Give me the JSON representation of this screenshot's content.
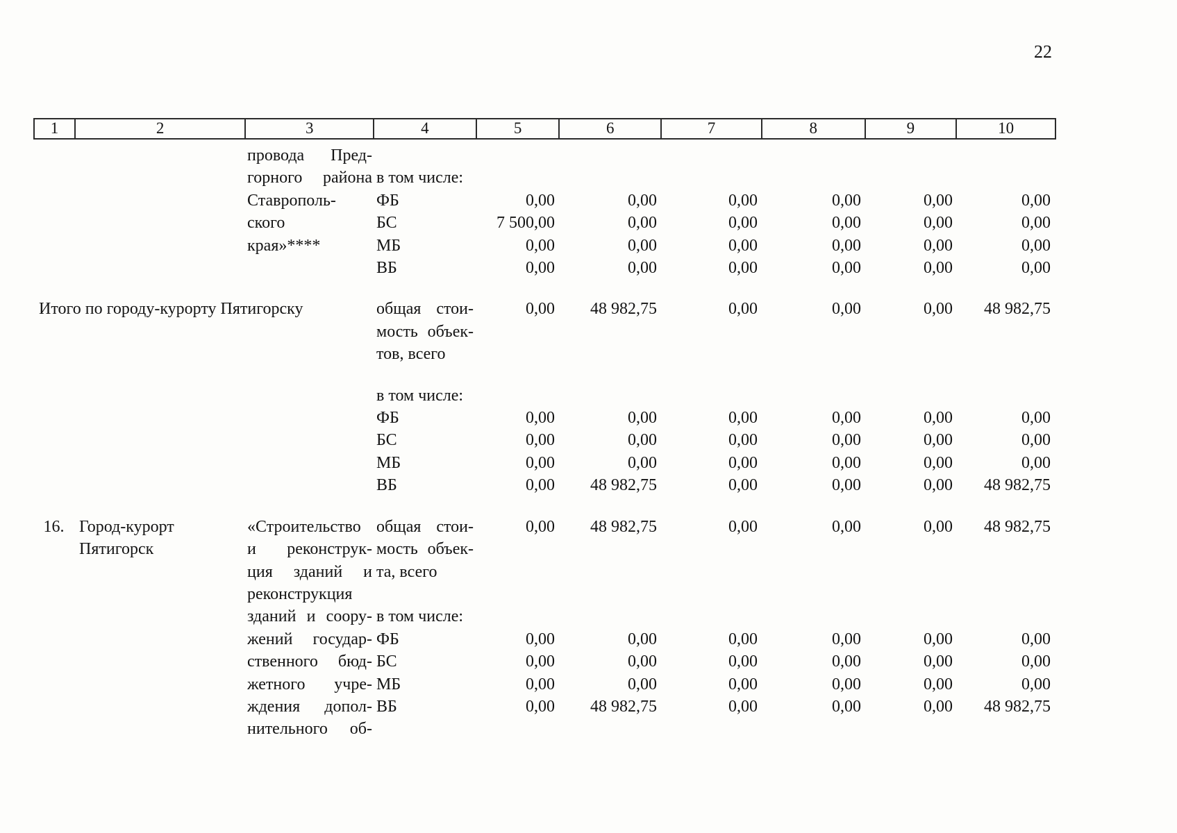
{
  "page_number": "22",
  "table": {
    "header": [
      "1",
      "2",
      "3",
      "4",
      "5",
      "6",
      "7",
      "8",
      "9",
      "10"
    ],
    "rows": [
      {
        "cells": [
          {
            "c": 3,
            "t": "провода Пред-",
            "j": 1
          }
        ]
      },
      {
        "cells": [
          {
            "c": 3,
            "t": "горного района",
            "j": 1
          },
          {
            "c": 4,
            "t": "в том числе:"
          }
        ]
      },
      {
        "cells": [
          {
            "c": 3,
            "t": "Ставрополь-",
            "j": 1
          },
          {
            "c": 4,
            "t": "ФБ"
          },
          {
            "c": 5,
            "t": "0,00"
          },
          {
            "c": 6,
            "t": "0,00"
          },
          {
            "c": 7,
            "t": "0,00"
          },
          {
            "c": 8,
            "t": "0,00"
          },
          {
            "c": 9,
            "t": "0,00"
          },
          {
            "c": 10,
            "t": "0,00"
          }
        ]
      },
      {
        "cells": [
          {
            "c": 3,
            "t": "ского",
            "j": 1
          },
          {
            "c": 4,
            "t": "БС"
          },
          {
            "c": 5,
            "t": "7 500,00"
          },
          {
            "c": 6,
            "t": "0,00"
          },
          {
            "c": 7,
            "t": "0,00"
          },
          {
            "c": 8,
            "t": "0,00"
          },
          {
            "c": 9,
            "t": "0,00"
          },
          {
            "c": 10,
            "t": "0,00"
          }
        ]
      },
      {
        "cells": [
          {
            "c": 3,
            "t": "края»****",
            "j": 1
          },
          {
            "c": 4,
            "t": "МБ"
          },
          {
            "c": 5,
            "t": "0,00"
          },
          {
            "c": 6,
            "t": "0,00"
          },
          {
            "c": 7,
            "t": "0,00"
          },
          {
            "c": 8,
            "t": "0,00"
          },
          {
            "c": 9,
            "t": "0,00"
          },
          {
            "c": 10,
            "t": "0,00"
          }
        ]
      },
      {
        "cells": [
          {
            "c": 4,
            "t": "ВБ"
          },
          {
            "c": 5,
            "t": "0,00"
          },
          {
            "c": 6,
            "t": "0,00"
          },
          {
            "c": 7,
            "t": "0,00"
          },
          {
            "c": 8,
            "t": "0,00"
          },
          {
            "c": 9,
            "t": "0,00"
          },
          {
            "c": 10,
            "t": "0,00"
          }
        ]
      },
      {
        "spacer": true
      },
      {
        "cells": [
          {
            "c": 1,
            "s": 3,
            "t": "Итого по городу-курорту Пятигорску"
          },
          {
            "c": 4,
            "t": "общая стои-",
            "j": 1
          },
          {
            "c": 5,
            "t": "0,00"
          },
          {
            "c": 6,
            "t": "48 982,75"
          },
          {
            "c": 7,
            "t": "0,00"
          },
          {
            "c": 8,
            "t": "0,00"
          },
          {
            "c": 9,
            "t": "0,00"
          },
          {
            "c": 10,
            "t": "48 982,75"
          }
        ]
      },
      {
        "cells": [
          {
            "c": 4,
            "t": "мость объек-",
            "j": 1
          }
        ]
      },
      {
        "cells": [
          {
            "c": 4,
            "t": "тов, всего"
          }
        ]
      },
      {
        "spacer": true
      },
      {
        "cells": [
          {
            "c": 4,
            "t": "в том числе:"
          }
        ]
      },
      {
        "cells": [
          {
            "c": 4,
            "t": "ФБ"
          },
          {
            "c": 5,
            "t": "0,00"
          },
          {
            "c": 6,
            "t": "0,00"
          },
          {
            "c": 7,
            "t": "0,00"
          },
          {
            "c": 8,
            "t": "0,00"
          },
          {
            "c": 9,
            "t": "0,00"
          },
          {
            "c": 10,
            "t": "0,00"
          }
        ]
      },
      {
        "cells": [
          {
            "c": 4,
            "t": "БС"
          },
          {
            "c": 5,
            "t": "0,00"
          },
          {
            "c": 6,
            "t": "0,00"
          },
          {
            "c": 7,
            "t": "0,00"
          },
          {
            "c": 8,
            "t": "0,00"
          },
          {
            "c": 9,
            "t": "0,00"
          },
          {
            "c": 10,
            "t": "0,00"
          }
        ]
      },
      {
        "cells": [
          {
            "c": 4,
            "t": "МБ"
          },
          {
            "c": 5,
            "t": "0,00"
          },
          {
            "c": 6,
            "t": "0,00"
          },
          {
            "c": 7,
            "t": "0,00"
          },
          {
            "c": 8,
            "t": "0,00"
          },
          {
            "c": 9,
            "t": "0,00"
          },
          {
            "c": 10,
            "t": "0,00"
          }
        ]
      },
      {
        "cells": [
          {
            "c": 4,
            "t": "ВБ"
          },
          {
            "c": 5,
            "t": "0,00"
          },
          {
            "c": 6,
            "t": "48 982,75"
          },
          {
            "c": 7,
            "t": "0,00"
          },
          {
            "c": 8,
            "t": "0,00"
          },
          {
            "c": 9,
            "t": "0,00"
          },
          {
            "c": 10,
            "t": "48 982,75"
          }
        ]
      },
      {
        "spacer": true
      },
      {
        "cells": [
          {
            "c": 1,
            "t": "16."
          },
          {
            "c": 2,
            "t": "Город-курорт"
          },
          {
            "c": 3,
            "t": "«Строительство",
            "j": 1
          },
          {
            "c": 4,
            "t": "общая стои-",
            "j": 1
          },
          {
            "c": 5,
            "t": "0,00"
          },
          {
            "c": 6,
            "t": "48 982,75"
          },
          {
            "c": 7,
            "t": "0,00"
          },
          {
            "c": 8,
            "t": "0,00"
          },
          {
            "c": 9,
            "t": "0,00"
          },
          {
            "c": 10,
            "t": "48 982,75"
          }
        ]
      },
      {
        "cells": [
          {
            "c": 2,
            "t": "Пятигорск"
          },
          {
            "c": 3,
            "t": "и реконструк-",
            "j": 1
          },
          {
            "c": 4,
            "t": "мость объек-",
            "j": 1
          }
        ]
      },
      {
        "cells": [
          {
            "c": 3,
            "t": "ция зданий и",
            "j": 1
          },
          {
            "c": 4,
            "t": "та, всего"
          }
        ]
      },
      {
        "cells": [
          {
            "c": 3,
            "t": "реконструкция",
            "j": 1
          }
        ]
      },
      {
        "cells": [
          {
            "c": 3,
            "t": "зданий и соору-",
            "j": 1
          },
          {
            "c": 4,
            "t": "в том числе:"
          }
        ]
      },
      {
        "cells": [
          {
            "c": 3,
            "t": "жений государ-",
            "j": 1
          },
          {
            "c": 4,
            "t": "ФБ"
          },
          {
            "c": 5,
            "t": "0,00"
          },
          {
            "c": 6,
            "t": "0,00"
          },
          {
            "c": 7,
            "t": "0,00"
          },
          {
            "c": 8,
            "t": "0,00"
          },
          {
            "c": 9,
            "t": "0,00"
          },
          {
            "c": 10,
            "t": "0,00"
          }
        ]
      },
      {
        "cells": [
          {
            "c": 3,
            "t": "ственного бюд-",
            "j": 1
          },
          {
            "c": 4,
            "t": "БС"
          },
          {
            "c": 5,
            "t": "0,00"
          },
          {
            "c": 6,
            "t": "0,00"
          },
          {
            "c": 7,
            "t": "0,00"
          },
          {
            "c": 8,
            "t": "0,00"
          },
          {
            "c": 9,
            "t": "0,00"
          },
          {
            "c": 10,
            "t": "0,00"
          }
        ]
      },
      {
        "cells": [
          {
            "c": 3,
            "t": "жетного учре-",
            "j": 1
          },
          {
            "c": 4,
            "t": "МБ"
          },
          {
            "c": 5,
            "t": "0,00"
          },
          {
            "c": 6,
            "t": "0,00"
          },
          {
            "c": 7,
            "t": "0,00"
          },
          {
            "c": 8,
            "t": "0,00"
          },
          {
            "c": 9,
            "t": "0,00"
          },
          {
            "c": 10,
            "t": "0,00"
          }
        ]
      },
      {
        "cells": [
          {
            "c": 3,
            "t": "ждения допол-",
            "j": 1
          },
          {
            "c": 4,
            "t": "ВБ"
          },
          {
            "c": 5,
            "t": "0,00"
          },
          {
            "c": 6,
            "t": "48 982,75"
          },
          {
            "c": 7,
            "t": "0,00"
          },
          {
            "c": 8,
            "t": "0,00"
          },
          {
            "c": 9,
            "t": "0,00"
          },
          {
            "c": 10,
            "t": "48 982,75"
          }
        ]
      },
      {
        "cells": [
          {
            "c": 3,
            "t": "нительного об-",
            "j": 1
          }
        ]
      }
    ]
  }
}
